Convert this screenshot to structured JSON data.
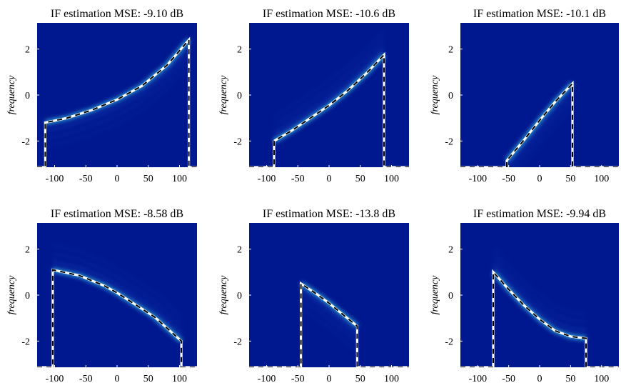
{
  "colors": {
    "background": "#00188f",
    "ridge_core": "#c46a3a",
    "ridge_glow": "#4ff0ff",
    "estimate_line_outer": "#ffffff",
    "estimate_line_inner": "#000000"
  },
  "chart_data": [
    {
      "type": "heatmap",
      "title": "IF estimation MSE: -9.10 dB",
      "ylabel": "frequency",
      "xlim": [
        -128,
        128
      ],
      "ylim": [
        -3.14,
        3.14
      ],
      "xticks": [
        -100,
        -50,
        0,
        50,
        100
      ],
      "yticks": [
        -2,
        0,
        2
      ],
      "xtick_labels": [
        "-100",
        "-50",
        "0",
        "50",
        "100"
      ],
      "ytick_labels": [
        "-2",
        "0",
        "2"
      ],
      "if_estimate": {
        "x": [
          -115,
          -80,
          -40,
          0,
          40,
          80,
          115
        ],
        "y": [
          -1.2,
          -1.0,
          -0.65,
          -0.2,
          0.4,
          1.3,
          2.4
        ]
      },
      "support": [
        -115,
        115
      ]
    },
    {
      "type": "heatmap",
      "title": "IF estimation MSE: -10.6 dB",
      "ylabel": "frequency",
      "xlim": [
        -128,
        128
      ],
      "ylim": [
        -3.14,
        3.14
      ],
      "xticks": [
        -100,
        -50,
        0,
        50,
        100
      ],
      "yticks": [
        -2,
        0,
        2
      ],
      "xtick_labels": [
        "-100",
        "-50",
        "0",
        "50",
        "100"
      ],
      "ytick_labels": [
        "-2",
        "0",
        "2"
      ],
      "if_estimate": {
        "x": [
          -88,
          -60,
          -30,
          0,
          30,
          60,
          88
        ],
        "y": [
          -2.0,
          -1.55,
          -1.0,
          -0.45,
          0.2,
          0.95,
          1.75
        ]
      },
      "support": [
        -88,
        88
      ]
    },
    {
      "type": "heatmap",
      "title": "IF estimation MSE: -10.1 dB",
      "ylabel": "frequency",
      "xlim": [
        -128,
        128
      ],
      "ylim": [
        -3.14,
        3.14
      ],
      "xticks": [
        -100,
        -50,
        0,
        50,
        100
      ],
      "yticks": [
        -2,
        0,
        2
      ],
      "xtick_labels": [
        "-100",
        "-50",
        "0",
        "50",
        "100"
      ],
      "ytick_labels": [
        "-2",
        "0",
        "2"
      ],
      "if_estimate": {
        "x": [
          -53,
          -25,
          0,
          25,
          53
        ],
        "y": [
          -2.85,
          -1.95,
          -1.1,
          -0.3,
          0.5
        ]
      },
      "support": [
        -53,
        53
      ]
    },
    {
      "type": "heatmap",
      "title": "IF estimation MSE: -8.58 dB",
      "ylabel": "frequency",
      "xlim": [
        -128,
        128
      ],
      "ylim": [
        -3.14,
        3.14
      ],
      "xticks": [
        -100,
        -50,
        0,
        50,
        100
      ],
      "yticks": [
        -2,
        0,
        2
      ],
      "xtick_labels": [
        "-100",
        "-50",
        "0",
        "50",
        "100"
      ],
      "ytick_labels": [
        "-2",
        "0",
        "2"
      ],
      "if_estimate": {
        "x": [
          -103,
          -60,
          -20,
          0,
          20,
          60,
          103
        ],
        "y": [
          1.1,
          0.85,
          0.4,
          0.1,
          -0.25,
          -0.95,
          -2.0
        ]
      },
      "support": [
        -103,
        103
      ]
    },
    {
      "type": "heatmap",
      "title": "IF estimation MSE: -13.8 dB",
      "ylabel": "frequency",
      "xlim": [
        -128,
        128
      ],
      "ylim": [
        -3.14,
        3.14
      ],
      "xticks": [
        -100,
        -50,
        0,
        50,
        100
      ],
      "yticks": [
        -2,
        0,
        2
      ],
      "xtick_labels": [
        "-100",
        "-50",
        "0",
        "50",
        "100"
      ],
      "ytick_labels": [
        "-2",
        "0",
        "2"
      ],
      "if_estimate": {
        "x": [
          -45,
          -20,
          0,
          20,
          45
        ],
        "y": [
          0.5,
          0.05,
          -0.35,
          -0.8,
          -1.35
        ]
      },
      "support": [
        -45,
        45
      ]
    },
    {
      "type": "heatmap",
      "title": "IF estimation MSE: -9.94 dB",
      "ylabel": "frequency",
      "xlim": [
        -128,
        128
      ],
      "ylim": [
        -3.14,
        3.14
      ],
      "xticks": [
        -100,
        -50,
        0,
        50,
        100
      ],
      "yticks": [
        -2,
        0,
        2
      ],
      "xtick_labels": [
        "-100",
        "-50",
        "0",
        "50",
        "100"
      ],
      "ytick_labels": [
        "-2",
        "0",
        "2"
      ],
      "if_estimate": {
        "x": [
          -75,
          -50,
          -25,
          0,
          25,
          50,
          75
        ],
        "y": [
          1.0,
          0.25,
          -0.45,
          -1.05,
          -1.55,
          -1.8,
          -1.88
        ]
      },
      "support": [
        -75,
        75
      ]
    }
  ]
}
